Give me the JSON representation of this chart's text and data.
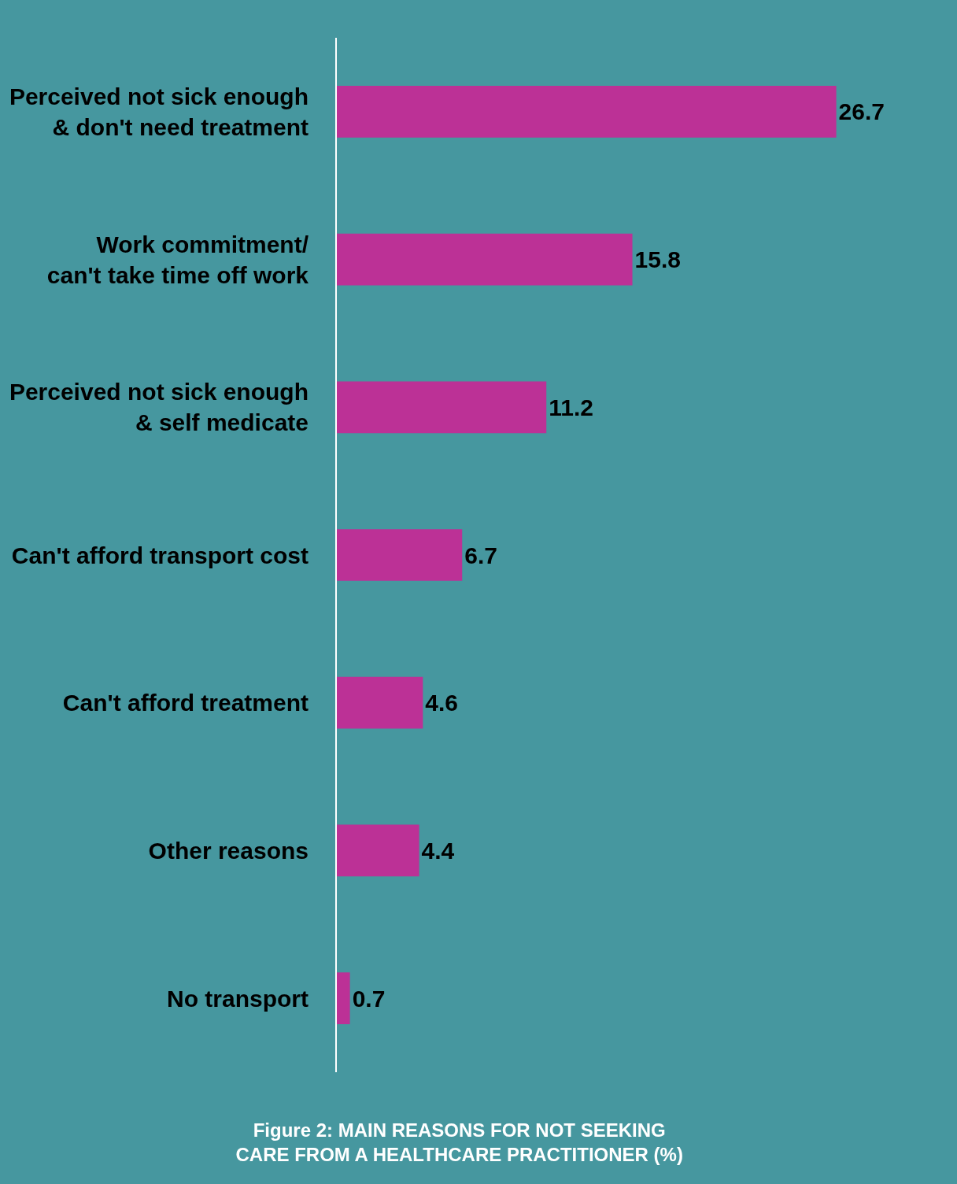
{
  "chart_data": {
    "type": "bar",
    "orientation": "horizontal",
    "title": "Figure 2: MAIN REASONS FOR NOT SEEKING\nCARE FROM A HEALTHCARE PRACTITIONER (%)",
    "categories": [
      "Perceived not sick enough\n& don't need treatment",
      "Work commitment/\ncan't take time off work",
      "Perceived not sick enough\n& self medicate",
      "Can't afford transport cost",
      "Can't afford treatment",
      "Other reasons",
      "No transport"
    ],
    "values": [
      26.7,
      15.8,
      11.2,
      6.7,
      4.6,
      4.4,
      0.7
    ],
    "color": "#bc3196",
    "data_labels": true,
    "grid": false,
    "legend": false,
    "tick_labels": "y"
  }
}
